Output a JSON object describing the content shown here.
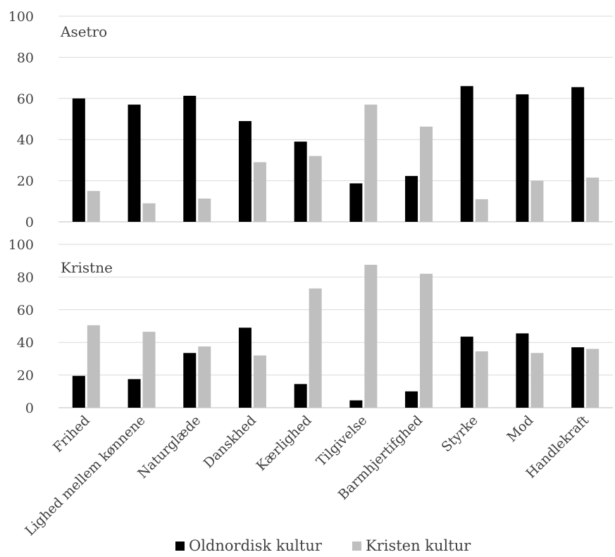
{
  "chart_data": [
    {
      "type": "bar",
      "title": "Asetro",
      "categories": [
        "Frihed",
        "Lighed mellem kønnene",
        "Naturglæde",
        "Danskhed",
        "Kærlighed",
        "Tilgivelse",
        "Barmhjertifghed",
        "Styrke",
        "Mod",
        "Handlekraft"
      ],
      "series": [
        {
          "name": "Oldnordisk kultur",
          "values": [
            60,
            57,
            61.3,
            49,
            39,
            18.7,
            22.3,
            66,
            62,
            65.5
          ]
        },
        {
          "name": "Kristen kultur",
          "values": [
            15,
            9,
            11.3,
            29,
            32,
            57,
            46.3,
            11,
            20,
            21.5
          ]
        }
      ],
      "ylim": [
        0,
        100
      ],
      "yticks": [
        "0",
        "20",
        "40",
        "60",
        "80",
        "100"
      ],
      "grid": true
    },
    {
      "type": "bar",
      "title": "Kristne",
      "categories": [
        "Frihed",
        "Lighed mellem kønnene",
        "Naturglæde",
        "Danskhed",
        "Kærlighed",
        "Tilgivelse",
        "Barmhjertifghed",
        "Styrke",
        "Mod",
        "Handlekraft"
      ],
      "series": [
        {
          "name": "Oldnordisk kultur",
          "values": [
            19.5,
            17.5,
            33.5,
            49,
            14.5,
            4.5,
            10,
            43.5,
            45.5,
            37
          ]
        },
        {
          "name": "Kristen kultur",
          "values": [
            50.5,
            46.5,
            37.5,
            32,
            73,
            87.5,
            82,
            34.5,
            33.5,
            36
          ]
        }
      ],
      "ylim": [
        0,
        100
      ],
      "yticks": [
        "0",
        "20",
        "40",
        "60",
        "80",
        "100"
      ],
      "grid": true
    }
  ],
  "legend": [
    {
      "label": "Oldnordisk kultur",
      "color": "#000000"
    },
    {
      "label": "Kristen kultur",
      "color": "#bfbfbf"
    }
  ],
  "colors": {
    "series1": "#000000",
    "series2": "#bfbfbf",
    "grid": "#d9d9d9",
    "text": "#404040"
  }
}
